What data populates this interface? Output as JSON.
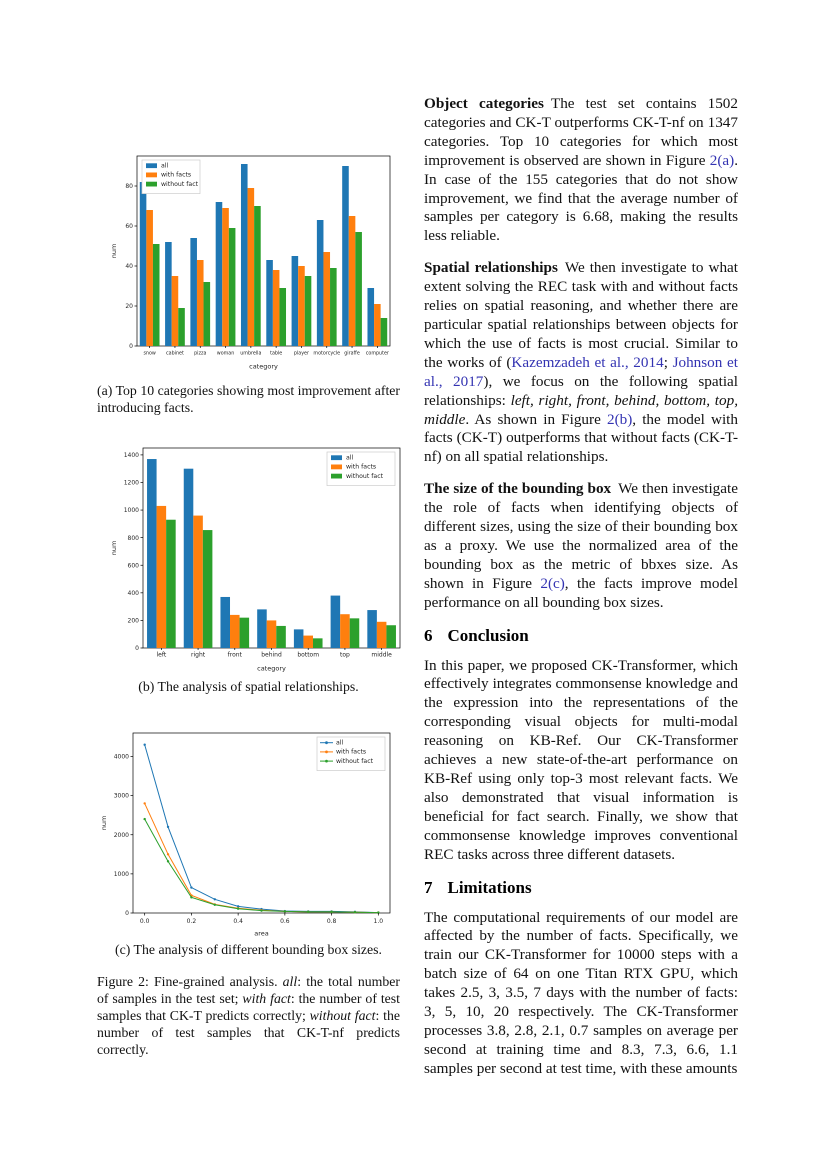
{
  "colors": {
    "series_all": "#1f77b4",
    "series_with_facts": "#ff7f0e",
    "series_without_fact": "#2ca02c",
    "link": "#3333b2",
    "text": "#111111",
    "background": "#ffffff"
  },
  "figure": {
    "subcaption_a": "(a) Top 10 categories showing most improvement after introducing facts.",
    "subcaption_b": "(b) The analysis of spatial relationships.",
    "subcaption_c": "(c) The analysis of different bounding box sizes.",
    "main_caption": [
      {
        "t": "Figure 2: Fine-grained analysis. ",
        "s": "p"
      },
      {
        "t": "all",
        "s": "i"
      },
      {
        "t": ": the total number of samples in the test set; ",
        "s": "p"
      },
      {
        "t": "with fact",
        "s": "i"
      },
      {
        "t": ": the number of test samples that CK-T predicts correctly; ",
        "s": "p"
      },
      {
        "t": "without fact",
        "s": "i"
      },
      {
        "t": ": the number of test samples that CK-T-nf predicts correctly.",
        "s": "p"
      }
    ]
  },
  "chart_data": [
    {
      "type": "bar",
      "title": "",
      "xlabel": "category",
      "ylabel": "num",
      "ylim": [
        0,
        95
      ],
      "yticks": [
        0,
        20,
        40,
        60,
        80
      ],
      "grid": false,
      "legend_position": "upper left",
      "categories": [
        "snow",
        "cabinet",
        "pizza",
        "woman",
        "umbrella",
        "table",
        "player",
        "motorcycle",
        "giraffe",
        "computer"
      ],
      "series": [
        {
          "name": "all",
          "color": "#1f77b4",
          "values": [
            82,
            52,
            54,
            72,
            91,
            43,
            45,
            63,
            90,
            29
          ]
        },
        {
          "name": "with facts",
          "color": "#ff7f0e",
          "values": [
            68,
            35,
            43,
            69,
            79,
            38,
            40,
            47,
            65,
            21
          ]
        },
        {
          "name": "without fact",
          "color": "#2ca02c",
          "values": [
            51,
            19,
            32,
            59,
            70,
            29,
            35,
            39,
            57,
            14
          ]
        }
      ]
    },
    {
      "type": "bar",
      "title": "",
      "xlabel": "category",
      "ylabel": "num",
      "ylim": [
        0,
        1450
      ],
      "yticks": [
        0,
        200,
        400,
        600,
        800,
        1000,
        1200,
        1400
      ],
      "grid": false,
      "legend_position": "upper right",
      "categories": [
        "left",
        "right",
        "front",
        "behind",
        "bottom",
        "top",
        "middle"
      ],
      "series": [
        {
          "name": "all",
          "color": "#1f77b4",
          "values": [
            1370,
            1300,
            370,
            280,
            135,
            380,
            275
          ]
        },
        {
          "name": "with facts",
          "color": "#ff7f0e",
          "values": [
            1030,
            960,
            240,
            200,
            90,
            245,
            190
          ]
        },
        {
          "name": "without fact",
          "color": "#2ca02c",
          "values": [
            930,
            855,
            220,
            160,
            70,
            215,
            165
          ]
        }
      ]
    },
    {
      "type": "line",
      "title": "",
      "xlabel": "area",
      "ylabel": "num",
      "ylim": [
        0,
        4600
      ],
      "yticks": [
        0,
        1000,
        2000,
        3000,
        4000
      ],
      "xticks": [
        0.0,
        0.2,
        0.4,
        0.6,
        0.8,
        1.0
      ],
      "grid": false,
      "legend_position": "upper right",
      "x": [
        0.0,
        0.1,
        0.2,
        0.3,
        0.4,
        0.5,
        0.6,
        0.7,
        0.8,
        0.9,
        1.0
      ],
      "series": [
        {
          "name": "all",
          "color": "#1f77b4",
          "values": [
            4300,
            2200,
            650,
            350,
            170,
            100,
            50,
            40,
            40,
            30,
            10
          ]
        },
        {
          "name": "with facts",
          "color": "#ff7f0e",
          "values": [
            2800,
            1500,
            450,
            220,
            120,
            70,
            40,
            30,
            30,
            20,
            10
          ]
        },
        {
          "name": "without fact",
          "color": "#2ca02c",
          "values": [
            2400,
            1320,
            400,
            210,
            110,
            60,
            40,
            30,
            30,
            20,
            10
          ]
        }
      ]
    }
  ],
  "content": {
    "para_object_categories": [
      {
        "t": "Object categories",
        "s": "b"
      },
      {
        "t": "The test set contains 1502 categories and CK-T outperforms CK-T-nf on 1347 categories. Top 10 categories for which most improvement is observed are shown in Figure ",
        "s": "p"
      },
      {
        "t": "2(a)",
        "s": "l"
      },
      {
        "t": ". In case of the 155 categories that do not show improvement, we find that the average number of samples per category is 6.68, making the results less reliable.",
        "s": "p"
      }
    ],
    "para_spatial": [
      {
        "t": "Spatial relationships",
        "s": "b"
      },
      {
        "t": "We then investigate to what extent solving the REC task with and without facts relies on spatial reasoning, and whether there are particular spatial relationships between objects for which the use of facts is most crucial. Similar to the works of (",
        "s": "p"
      },
      {
        "t": "Kazemzadeh et al., 2014",
        "s": "l"
      },
      {
        "t": "; ",
        "s": "p"
      },
      {
        "t": "Johnson et al., 2017",
        "s": "l"
      },
      {
        "t": "), we focus on the following spatial relationships: ",
        "s": "p"
      },
      {
        "t": "left, right, front, behind, bottom, top, middle",
        "s": "i"
      },
      {
        "t": ".  As shown in Figure ",
        "s": "p"
      },
      {
        "t": "2(b)",
        "s": "l"
      },
      {
        "t": ", the model with facts (CK-T) outperforms that without facts (CK-T-nf) on all spatial relationships.",
        "s": "p"
      }
    ],
    "para_bbox": [
      {
        "t": "The size of the bounding box",
        "s": "b"
      },
      {
        "t": "We then investigate the role of facts when identifying objects of different sizes, using the size of their bounding box as a proxy. We use the normalized area of the bounding box as the metric of bbxes size. As shown in Figure ",
        "s": "p"
      },
      {
        "t": "2(c)",
        "s": "l"
      },
      {
        "t": ", the facts improve model performance on all bounding box sizes.",
        "s": "p"
      }
    ],
    "heading_conclusion": {
      "number": "6",
      "title": "Conclusion"
    },
    "para_conclusion": [
      {
        "t": "In this paper, we proposed CK-Transformer, which effectively integrates commonsense knowledge and the expression into the representations of the corresponding visual objects for multi-modal reasoning on KB-Ref. Our CK-Transformer achieves a new state-of-the-art performance on KB-Ref using only top-3 most relevant facts.  We also demonstrated that visual information is beneficial for fact search. Finally, we show that commonsense knowledge improves conventional REC tasks across three different datasets.",
        "s": "p"
      }
    ],
    "heading_limitations": {
      "number": "7",
      "title": "Limitations"
    },
    "para_limitations": [
      {
        "t": "The computational requirements of our model are affected by the number of facts.  Specifically, we train our CK-Transformer for 10000 steps with a batch size of 64 on one Titan RTX GPU, which takes 2.5, 3, 3.5, 7 days with the number of facts: 3, 5, 10, 20 respectively.  The CK-Transformer processes 3.8, 2.8, 2.1, 0.7 samples on average per second at training time and 8.3, 7.3, 6.6, 1.1 samples per second at test time, with these amounts",
        "s": "p"
      }
    ]
  }
}
